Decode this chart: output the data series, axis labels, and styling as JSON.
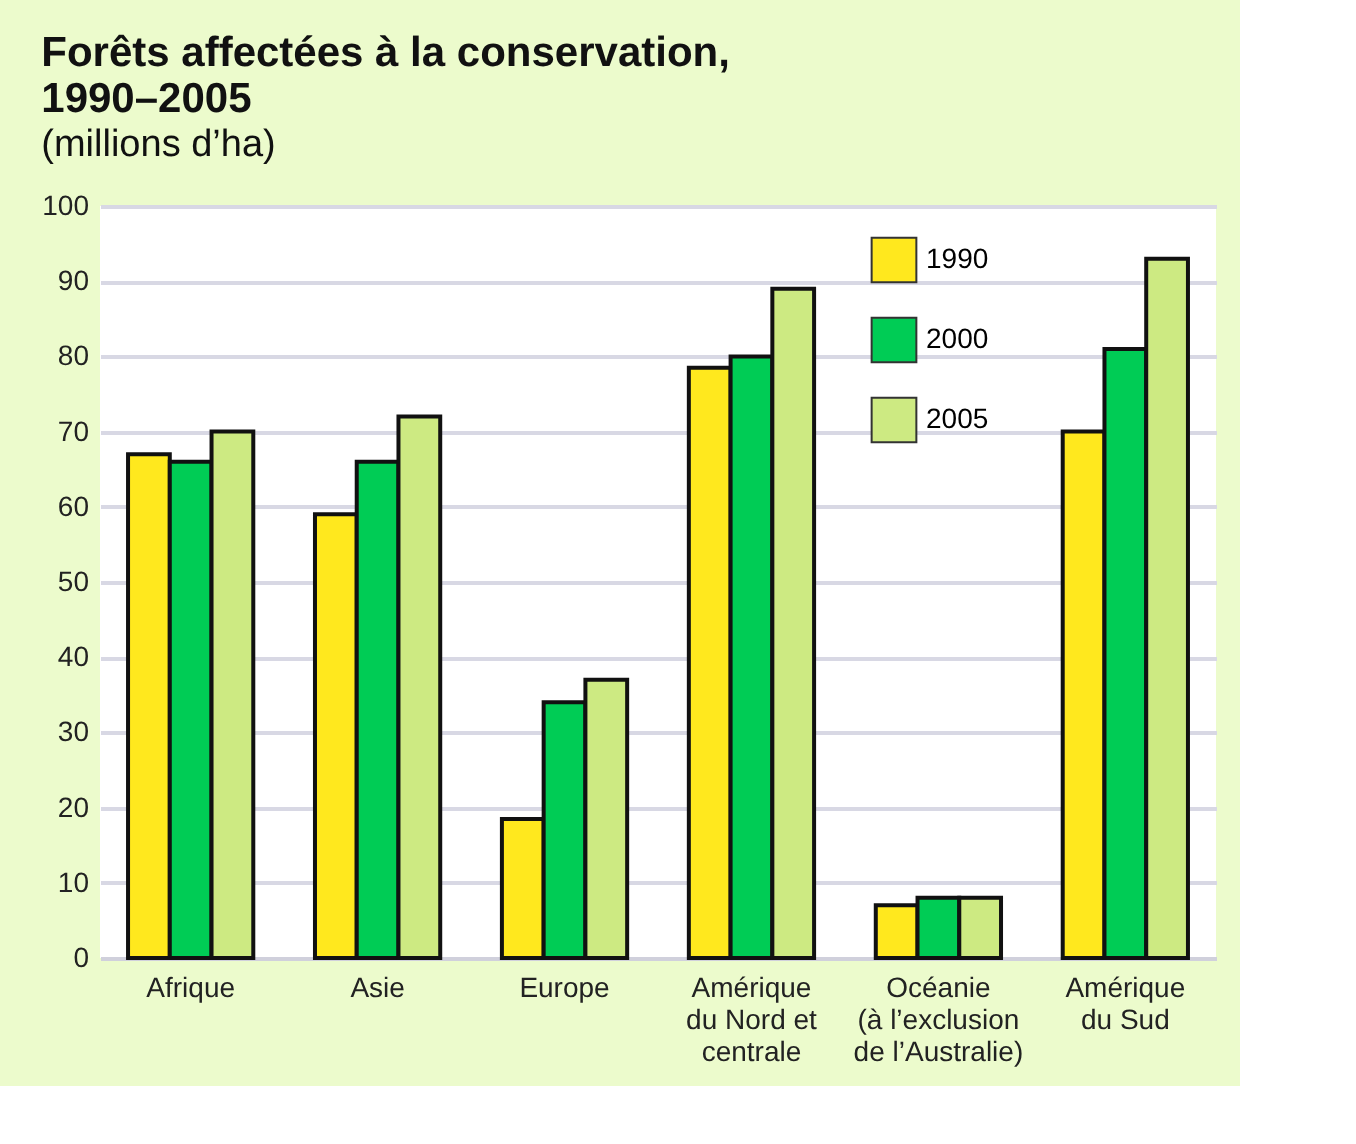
{
  "chart_data": {
    "type": "bar",
    "title": "Forêts affectées à la conservation,\n1990–2005",
    "subtitle": "(millions d’ha)",
    "categories": [
      "Afrique",
      "Asie",
      "Europe",
      "Amérique\ndu Nord et\ncentrale",
      "Océanie\n(à l’exclusion\nde l’Australie)",
      "Amérique\ndu Sud"
    ],
    "series": [
      {
        "name": "1990",
        "color": "#ffe81e",
        "values": [
          67,
          59,
          18.5,
          78.5,
          7,
          70
        ]
      },
      {
        "name": "2000",
        "color": "#00cc55",
        "values": [
          66,
          66,
          34,
          80,
          8,
          81
        ]
      },
      {
        "name": "2005",
        "color": "#cdea82",
        "values": [
          70,
          72,
          37,
          89,
          8,
          93
        ]
      }
    ],
    "ylim": [
      0,
      100
    ],
    "yticks": [
      0,
      10,
      20,
      30,
      40,
      50,
      60,
      70,
      80,
      90,
      100
    ],
    "grid": "y",
    "legend": "top right"
  }
}
